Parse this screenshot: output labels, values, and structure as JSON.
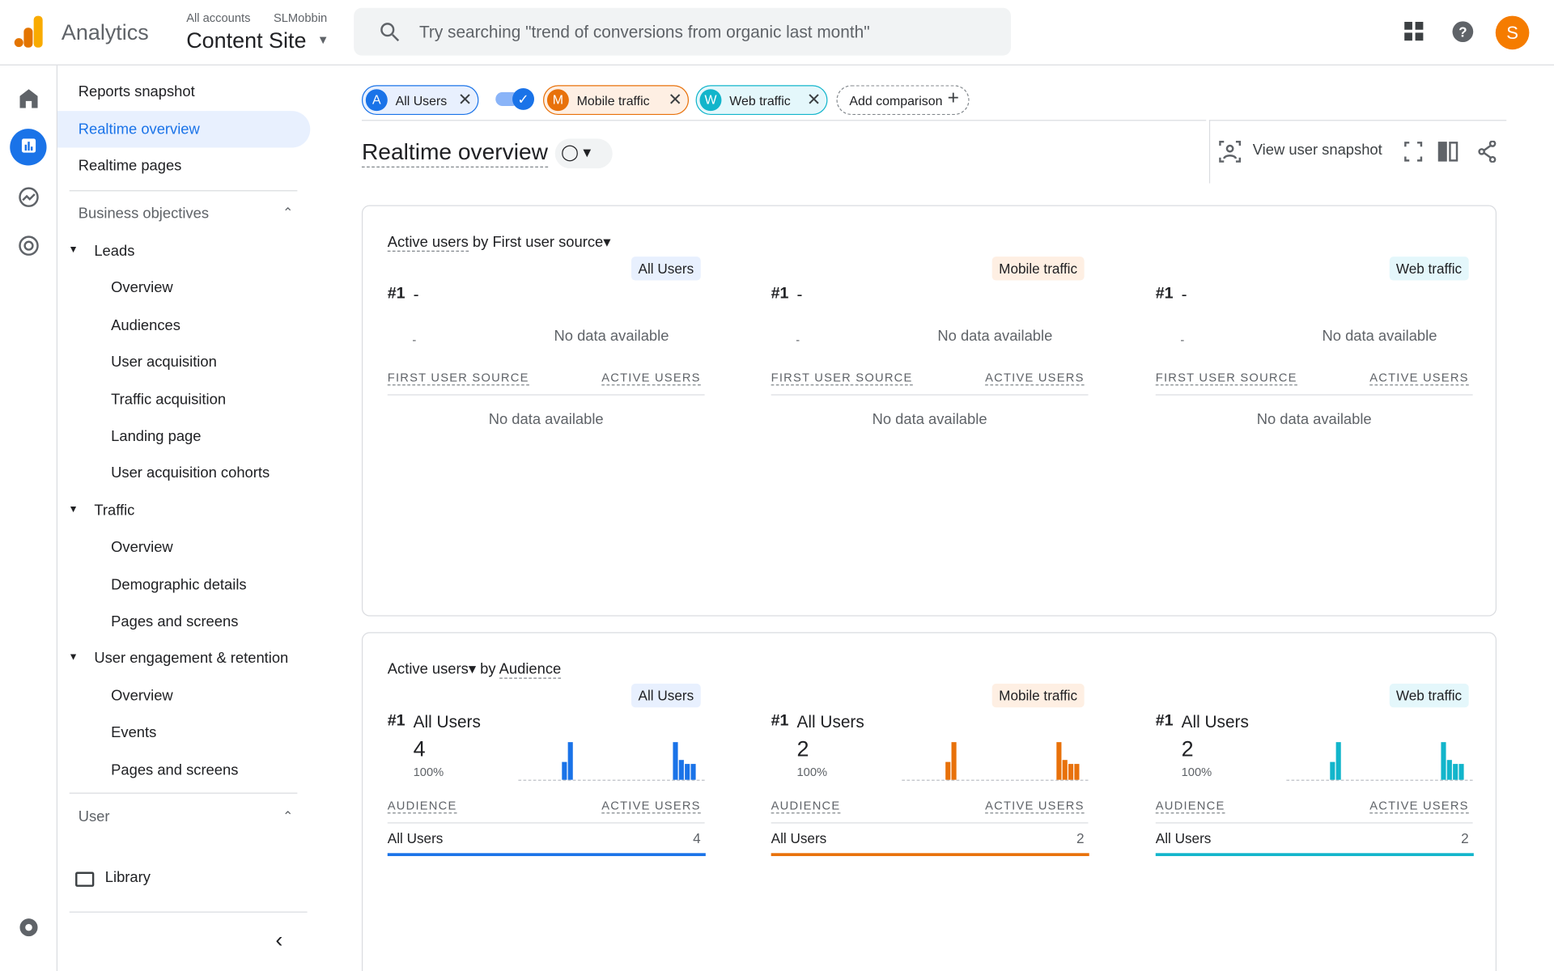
{
  "header": {
    "product": "Analytics",
    "breadcrumb": [
      "All accounts",
      "SLMobbin"
    ],
    "property": "Content Site",
    "search_placeholder": "Try searching \"trend of conversions from organic last month\"",
    "avatar": "S"
  },
  "nav": {
    "top": [
      "Reports snapshot",
      "Realtime overview",
      "Realtime pages"
    ],
    "sections": [
      {
        "title": "Business objectives",
        "groups": [
          {
            "title": "Leads",
            "items": [
              "Overview",
              "Audiences",
              "User acquisition",
              "Traffic acquisition",
              "Landing page",
              "User acquisition cohorts"
            ]
          },
          {
            "title": "Traffic",
            "items": [
              "Overview",
              "Demographic details",
              "Pages and screens"
            ]
          },
          {
            "title": "User engagement & retention",
            "items": [
              "Overview",
              "Events",
              "Pages and screens"
            ]
          }
        ]
      },
      {
        "title": "User"
      }
    ],
    "library": "Library"
  },
  "comparisons": {
    "chips": [
      {
        "letter": "A",
        "label": "All Users",
        "color": "#1a73e8",
        "tint": "#e8f0fe"
      },
      {
        "letter": "M",
        "label": "Mobile traffic",
        "color": "#e8710a",
        "tint": "#feefe3"
      },
      {
        "letter": "W",
        "label": "Web traffic",
        "color": "#12b5cb",
        "tint": "#e4f7fb"
      }
    ],
    "add": "Add comparison"
  },
  "page": {
    "title": "Realtime overview",
    "snapshot": "View user snapshot"
  },
  "cards": [
    {
      "metric": "Active users",
      "by": "by",
      "dimension": "First user source",
      "columns": [
        {
          "segment": "All Users",
          "rank": "#1",
          "top": "-",
          "chart_note": "No data available",
          "headers": [
            "FIRST USER SOURCE",
            "ACTIVE USERS"
          ],
          "table_note": "No data available"
        },
        {
          "segment": "Mobile traffic",
          "rank": "#1",
          "top": "-",
          "chart_note": "No data available",
          "headers": [
            "FIRST USER SOURCE",
            "ACTIVE USERS"
          ],
          "table_note": "No data available"
        },
        {
          "segment": "Web traffic",
          "rank": "#1",
          "top": "-",
          "chart_note": "No data available",
          "headers": [
            "FIRST USER SOURCE",
            "ACTIVE USERS"
          ],
          "table_note": "No data available"
        }
      ]
    },
    {
      "metric": "Active users",
      "by": "by",
      "dimension": "Audience",
      "columns": [
        {
          "segment": "All Users",
          "rank": "#1",
          "top": "All Users",
          "value": 4,
          "share": "100%",
          "headers": [
            "AUDIENCE",
            "ACTIVE USERS"
          ],
          "rows": [
            [
              "All Users",
              4
            ]
          ]
        },
        {
          "segment": "Mobile traffic",
          "rank": "#1",
          "top": "All Users",
          "value": 2,
          "share": "100%",
          "headers": [
            "AUDIENCE",
            "ACTIVE USERS"
          ],
          "rows": [
            [
              "All Users",
              2
            ]
          ]
        },
        {
          "segment": "Web traffic",
          "rank": "#1",
          "top": "All Users",
          "value": 2,
          "share": "100%",
          "headers": [
            "AUDIENCE",
            "ACTIVE USERS"
          ],
          "rows": [
            [
              "All Users",
              2
            ]
          ]
        }
      ]
    }
  ]
}
